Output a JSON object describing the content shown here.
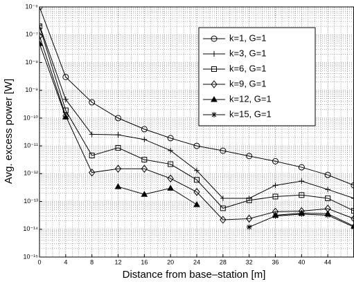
{
  "chart_data": {
    "type": "line",
    "x_label": "Distance from base–station [m]",
    "y_label": "Avg. excess power [W]",
    "x": [
      0,
      4,
      8,
      12,
      16,
      20,
      24,
      28,
      32,
      36,
      40,
      44,
      48
    ],
    "series": [
      {
        "name": "k=1, G=1",
        "marker": "circle",
        "color": "#000000",
        "values": [
          1e-06,
          3e-09,
          3.7e-10,
          1e-10,
          4e-11,
          1.9e-11,
          1e-11,
          6.7e-12,
          4.3e-12,
          2.8e-12,
          1.7e-12,
          9e-13,
          3.8e-13
        ]
      },
      {
        "name": "k=3, G=1",
        "marker": "plus",
        "color": "#000000",
        "values": [
          2.2e-07,
          4.7e-10,
          2.6e-11,
          2.5e-11,
          1.7e-11,
          6.8e-12,
          1.3e-12,
          1.3e-13,
          1.3e-13,
          3.8e-13,
          5.4e-13,
          2.7e-13,
          1.3e-13
        ]
      },
      {
        "name": "k=6, G=1",
        "marker": "square",
        "color": "#000000",
        "values": [
          2e-07,
          1.9e-10,
          4.5e-12,
          8.5e-12,
          3.2e-12,
          2.2e-12,
          6e-13,
          5.7e-14,
          1.1e-13,
          1.5e-13,
          1.7e-13,
          1.3e-13,
          4.6e-14
        ]
      },
      {
        "name": "k=9, G=1",
        "marker": "diamond",
        "color": "#000000",
        "values": [
          9e-08,
          1.2e-10,
          1.1e-12,
          1.5e-12,
          1.5e-12,
          6.7e-13,
          2.2e-13,
          2.2e-14,
          2.4e-14,
          4.3e-14,
          4.5e-14,
          5.5e-14,
          2.4e-14
        ]
      },
      {
        "name": "k=12, G=1",
        "marker": "triangle",
        "color": "#000000",
        "values": [
          4.8e-08,
          1.1e-10,
          null,
          3.4e-13,
          1.8e-13,
          3e-13,
          7.7e-14,
          null,
          null,
          3.2e-14,
          3.8e-14,
          3.6e-14,
          1.3e-14
        ]
      },
      {
        "name": "k=15, G=1",
        "marker": "asterisk",
        "color": "#000000",
        "values": [
          null,
          null,
          null,
          null,
          null,
          null,
          null,
          null,
          1.2e-14,
          3e-14,
          3.5e-14,
          3.2e-14,
          1.2e-14
        ]
      }
    ],
    "xlim": [
      0,
      48
    ],
    "xticks": [
      0,
      4,
      8,
      12,
      16,
      20,
      24,
      28,
      32,
      36,
      40,
      44
    ],
    "ylim": [
      1e-15,
      1e-06
    ],
    "log_y": true,
    "yticks": [
      {
        "value": 1e-15,
        "label": "10⁻¹⁵"
      },
      {
        "value": 1e-14,
        "label": "10⁻¹⁴"
      },
      {
        "value": 1e-13,
        "label": "10⁻¹³"
      },
      {
        "value": 1e-12,
        "label": "10⁻¹²"
      },
      {
        "value": 1e-11,
        "label": "10⁻¹¹"
      },
      {
        "value": 1e-10,
        "label": "10⁻¹⁰"
      },
      {
        "value": 1e-09,
        "label": "10⁻⁹"
      },
      {
        "value": 1e-08,
        "label": "10⁻⁸"
      },
      {
        "value": 1e-07,
        "label": "10⁻⁷"
      },
      {
        "value": 1e-06,
        "label": "10⁻⁶"
      }
    ],
    "grid": true,
    "legend": "upper right"
  }
}
